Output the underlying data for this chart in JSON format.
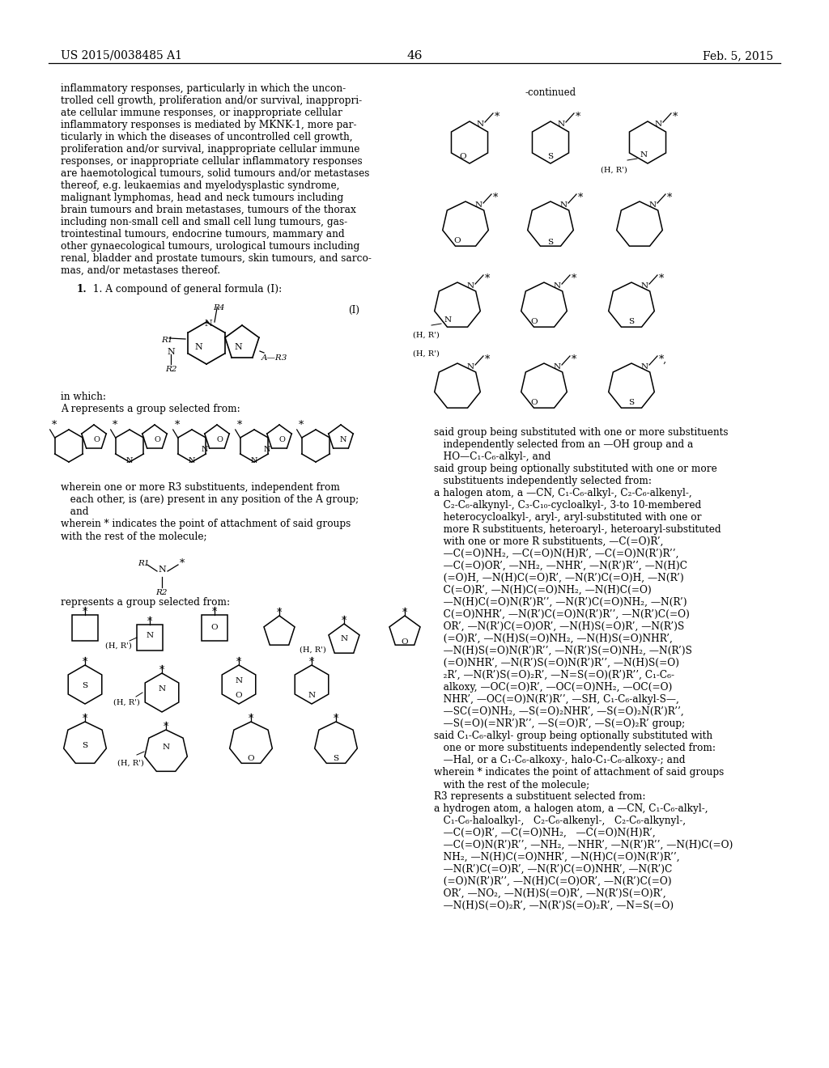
{
  "page_number": "46",
  "patent_number": "US 2015/0038485 A1",
  "date": "Feb. 5, 2015",
  "background_color": "#ffffff",
  "left_lines": [
    "inflammatory responses, particularly in which the uncon-",
    "trolled cell growth, proliferation and/or survival, inappropri-",
    "ate cellular immune responses, or inappropriate cellular",
    "inflammatory responses is mediated by MKNK-1, more par-",
    "ticularly in which the diseases of uncontrolled cell growth,",
    "proliferation and/or survival, inappropriate cellular immune",
    "responses, or inappropriate cellular inflammatory responses",
    "are haemotological tumours, solid tumours and/or metastases",
    "thereof, e.g. leukaemias and myelodysplastic syndrome,",
    "malignant lymphomas, head and neck tumours including",
    "brain tumours and brain metastases, tumours of the thorax",
    "including non-small cell and small cell lung tumours, gas-",
    "trointestinal tumours, endocrine tumours, mammary and",
    "other gynaecological tumours, urological tumours including",
    "renal, bladder and prostate tumours, skin tumours, and sarco-",
    "mas, and/or metastases thereof."
  ],
  "claim1": "       1. A compound of general formula (I):",
  "in_which": "in which:",
  "A_represents": "A represents a group selected from:",
  "wherein_r3_lines": [
    "wherein one or more R3 substituents, independent from",
    "each other, is (are) present in any position of the A group;",
    "and"
  ],
  "wherein_star_lines": [
    "wherein * indicates the point of attachment of said groups",
    "with the rest of the molecule;"
  ],
  "r1r2_represents": "represents a group selected from:",
  "continued_label": "-continued",
  "right_lines": [
    "said group being substituted with one or more substituents",
    "   independently selected from an —OH group and a",
    "   HO—C₁-C₆-alkyl-, and",
    "said group being optionally substituted with one or more",
    "   substituents independently selected from:",
    "a halogen atom, a —CN, C₁-C₆-alkyl-, C₂-C₆-alkenyl-,",
    "   C₂-C₆-alkynyl-, C₃-C₁₀-cycloalkyl-, 3-to 10-membered",
    "   heterocycloalkyl-, aryl-, aryl-substituted with one or",
    "   more R substituents, heteroaryl-, heteroaryl-substituted",
    "   with one or more R substituents, —C(=O)R’,",
    "   —C(=O)NH₂, —C(=O)N(H)R’, —C(=O)N(R’)R’’,",
    "   —C(=O)OR’, —NH₂, —NHR’, —N(R’)R’’, —N(H)C",
    "   (=O)H, —N(H)C(=O)R’, —N(R’)C(=O)H, —N(R’)",
    "   C(=O)R’, —N(H)C(=O)NH₂, —N(H)C(=O)",
    "   —N(H)C(=O)N(R’)R’’, —N(R’)C(=O)NH₂, —N(R’)",
    "   C(=O)NHR’, —N(R’)C(=O)N(R’)R’’, —N(R’)C(=O)",
    "   OR’, —N(R’)C(=O)OR’, —N(H)S(=O)R’, —N(R’)S",
    "   (=O)R’, —N(H)S(=O)NH₂, —N(H)S(=O)NHR’,",
    "   —N(H)S(=O)N(R’)R’’, —N(R’)S(=O)NH₂, —N(R’)S",
    "   (=O)NHR’, —N(R’)S(=O)N(R’)R’’, —N(H)S(=O)",
    "   ₂R’, —N(R’)S(=O)₂R’, —N=S(=O)(R’)R’’, C₁-C₆-",
    "   alkoxy, —OC(=O)R’, —OC(=O)NH₂, —OC(=O)",
    "   NHR’, —OC(=O)N(R’)R’’, —SH, C₁-C₆-alkyl-S—,",
    "   —SC(=O)NH₂, —S(=O)₂NHR’, —S(=O)₂N(R’)R’’,",
    "   —S(=O)(=NR’)R’’, —S(=O)R’, —S(=O)₂R’ group;",
    "said C₁-C₆-alkyl- group being optionally substituted with",
    "   one or more substituents independently selected from:",
    "   —Hal, or a C₁-C₆-alkoxy-, halo-C₁-C₆-alkoxy-; and",
    "wherein * indicates the point of attachment of said groups",
    "   with the rest of the molecule;",
    "R3 represents a substituent selected from:",
    "a hydrogen atom, a halogen atom, a —CN, C₁-C₆-alkyl-,",
    "   C₁-C₆-haloalkyl-,   C₂-C₆-alkenyl-,   C₂-C₆-alkynyl-,",
    "   —C(=O)R’, —C(=O)NH₂,   —C(=O)N(H)R’,",
    "   —C(=O)N(R’)R’’, —NH₂, —NHR’, —N(R’)R’’, —N(H)C(=O)",
    "   NH₂, —N(H)C(=O)NHR’, —N(H)C(=O)N(R’)R’’,",
    "   —N(R’)C(=O)R’, —N(R’)C(=O)NHR’, —N(R’)C",
    "   (=O)N(R’)R’’, —N(H)C(=O)OR’, —N(R’)C(=O)",
    "   OR’, —NO₂, —N(H)S(=O)R’, —N(R’)S(=O)R’,",
    "   —N(H)S(=O)₂R’, —N(R’)S(=O)₂R’, —N=S(=O)"
  ]
}
